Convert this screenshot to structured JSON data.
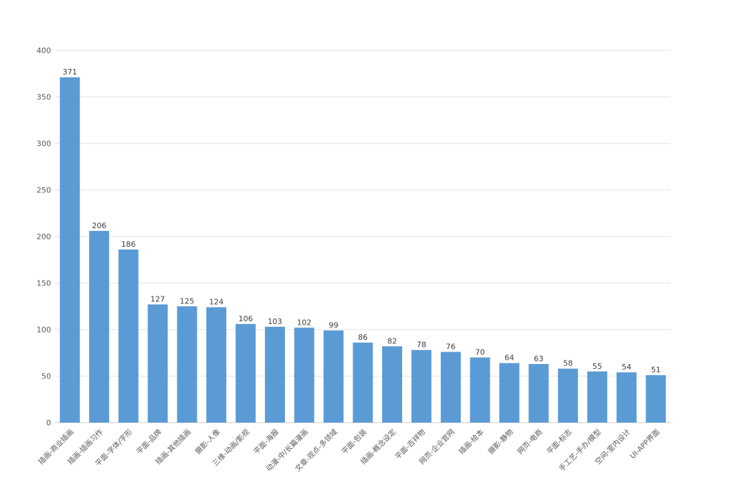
{
  "chart_data": {
    "type": "bar",
    "categories": [
      "插画-商业插画",
      "插画-插画习作",
      "平面-字体/字形",
      "平面-品牌",
      "插画-其他插画",
      "摄影-人像",
      "三维-动画/影视",
      "平面-海报",
      "动漫-中/长篇漫画",
      "文章-观点-多领域",
      "平面-包装",
      "插画-概念设定",
      "平面-吉祥物",
      "网页-企业官网",
      "插画-绘本",
      "摄影-静物",
      "网页-电商",
      "平面-标志",
      "手工艺-手办/模型",
      "空间-室内设计",
      "UI-APP界面"
    ],
    "values": [
      371,
      206,
      186,
      127,
      125,
      124,
      106,
      103,
      102,
      99,
      86,
      82,
      78,
      76,
      70,
      64,
      63,
      58,
      55,
      54,
      51
    ],
    "ylim": [
      0,
      400
    ],
    "yticks": [
      0,
      50,
      100,
      150,
      200,
      250,
      300,
      350,
      400
    ],
    "grid": true,
    "bar_color": "#5b9bd5",
    "title": "",
    "xlabel": "",
    "ylabel": ""
  }
}
